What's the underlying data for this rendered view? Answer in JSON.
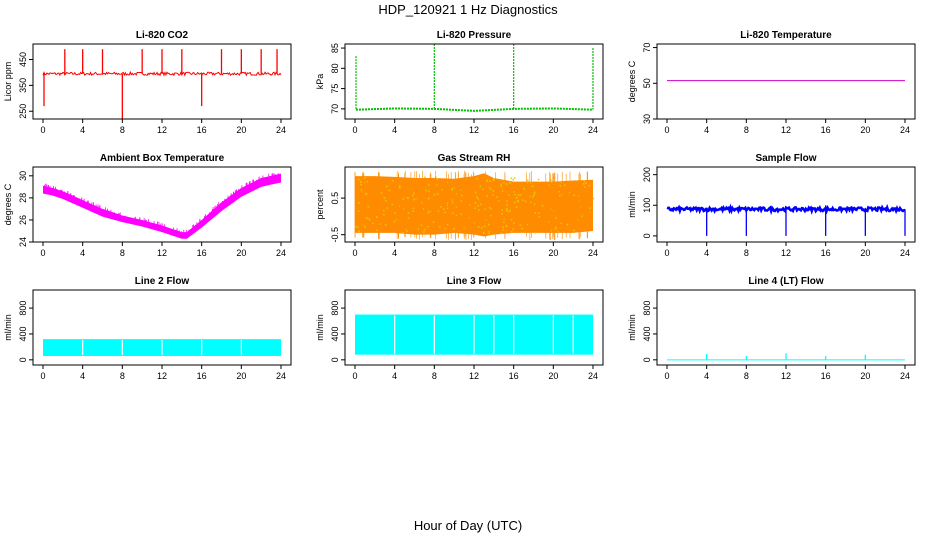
{
  "figure": {
    "title": "HDP_120921  1 Hz Diagnostics",
    "xlabel": "Hour of Day (UTC)"
  },
  "colors": {
    "co2": "#ff0000",
    "pressure": "#00c000",
    "temperature": "#cc00cc",
    "ambient": "#ff00ff",
    "rh_fill": "#ff8c00",
    "rh_dots": "#e8c800",
    "sample_flow": "#0000ff",
    "line_flow": "#00ffff"
  },
  "chart_data": [
    {
      "id": "co2",
      "type": "line",
      "title": "Li-820 CO2",
      "ylabel": "Licor ppm",
      "color": "#ff0000",
      "xlim": [
        0,
        24
      ],
      "ylim": [
        220,
        510
      ],
      "xticks": [
        0,
        4,
        8,
        12,
        16,
        20,
        24
      ],
      "yticks": [
        250,
        350,
        450
      ],
      "baseline": 395,
      "noise": 6,
      "spikes": [
        {
          "x": 2.2,
          "y": 490
        },
        {
          "x": 4.0,
          "y": 490
        },
        {
          "x": 6.0,
          "y": 490
        },
        {
          "x": 10.0,
          "y": 490
        },
        {
          "x": 12.0,
          "y": 490
        },
        {
          "x": 14.0,
          "y": 490
        },
        {
          "x": 18.0,
          "y": 490
        },
        {
          "x": 20.0,
          "y": 490
        },
        {
          "x": 22.0,
          "y": 490
        },
        {
          "x": 23.6,
          "y": 490
        },
        {
          "x": 8.0,
          "y": 220
        },
        {
          "x": 16.0,
          "y": 270
        },
        {
          "x": 0.1,
          "y": 270
        }
      ]
    },
    {
      "id": "pressure",
      "type": "line",
      "title": "Li-820 Pressure",
      "ylabel": "kPa",
      "color": "#00c000",
      "xlim": [
        0,
        24
      ],
      "ylim": [
        67.5,
        86
      ],
      "xticks": [
        0,
        4,
        8,
        12,
        16,
        20,
        24
      ],
      "yticks": [
        70,
        75,
        80,
        85
      ],
      "segments": [
        {
          "x": [
            0.1,
            4.0,
            8.0,
            12.0,
            16.0,
            20.0,
            24.0
          ],
          "y": [
            69.8,
            70.1,
            70.0,
            69.5,
            70.0,
            70.1,
            69.8
          ]
        }
      ],
      "spikes": [
        {
          "x": 0.1,
          "y": 83
        },
        {
          "x": 8.0,
          "y": 86
        },
        {
          "x": 16.0,
          "y": 86
        },
        {
          "x": 24.0,
          "y": 85
        }
      ]
    },
    {
      "id": "temperature",
      "type": "line",
      "title": "Li-820 Temperature",
      "ylabel": "degrees C",
      "color": "#cc00cc",
      "xlim": [
        0,
        24
      ],
      "ylim": [
        30,
        72
      ],
      "xticks": [
        0,
        4,
        8,
        12,
        16,
        20,
        24
      ],
      "yticks": [
        30,
        50,
        70
      ],
      "x": [
        0,
        24
      ],
      "y": [
        51.5,
        51.5
      ]
    },
    {
      "id": "ambient",
      "type": "area",
      "title": "Ambient Box Temperature",
      "ylabel": "degrees C",
      "color": "#ff00ff",
      "xlim": [
        0,
        24
      ],
      "ylim": [
        24,
        30.8
      ],
      "xticks": [
        0,
        4,
        8,
        12,
        16,
        20,
        24
      ],
      "yticks": [
        24,
        26,
        28,
        30
      ],
      "x": [
        0,
        1,
        2,
        3,
        4,
        6,
        8,
        10,
        12,
        14,
        14.5,
        16,
        18,
        20,
        22,
        23,
        24
      ],
      "upper": [
        29.1,
        28.9,
        28.6,
        28.2,
        27.8,
        27.0,
        26.4,
        26.0,
        25.5,
        24.9,
        24.9,
        26.0,
        27.6,
        28.9,
        29.8,
        30.0,
        30.2
      ],
      "lower": [
        28.4,
        28.2,
        27.9,
        27.5,
        27.1,
        26.3,
        25.8,
        25.4,
        24.9,
        24.3,
        24.3,
        25.3,
        26.8,
        28.1,
        29.0,
        29.2,
        29.4
      ]
    },
    {
      "id": "rh",
      "type": "area",
      "title": "Gas Stream RH",
      "ylabel": "percent",
      "color": "#ff8c00",
      "xlim": [
        0,
        24
      ],
      "ylim": [
        -0.7,
        1.35
      ],
      "xticks": [
        0,
        4,
        8,
        12,
        16,
        20,
        24
      ],
      "yticks": [
        -0.5,
        0.5
      ],
      "x": [
        0,
        2,
        4,
        6,
        8,
        10,
        12,
        13,
        14,
        16,
        18,
        20,
        22,
        24
      ],
      "upper": [
        1.1,
        1.1,
        1.08,
        1.05,
        1.05,
        1.03,
        1.1,
        1.18,
        1.05,
        0.95,
        0.95,
        0.95,
        0.98,
        1.0
      ],
      "lower": [
        -0.45,
        -0.45,
        -0.45,
        -0.5,
        -0.5,
        -0.45,
        -0.5,
        -0.55,
        -0.5,
        -0.45,
        -0.45,
        -0.45,
        -0.45,
        -0.4
      ]
    },
    {
      "id": "sample_flow",
      "type": "line",
      "title": "Sample Flow",
      "ylabel": "ml/min",
      "color": "#0000ff",
      "xlim": [
        0,
        24
      ],
      "ylim": [
        -20,
        225
      ],
      "xticks": [
        0,
        4,
        8,
        12,
        16,
        20,
        24
      ],
      "yticks": [
        0,
        100,
        200
      ],
      "baseline": 87,
      "noise": 6,
      "spikes": [
        {
          "x": 4.0,
          "y": 0
        },
        {
          "x": 8.0,
          "y": 0
        },
        {
          "x": 12.0,
          "y": 0
        },
        {
          "x": 16.0,
          "y": 0
        },
        {
          "x": 20.0,
          "y": 0
        },
        {
          "x": 24.0,
          "y": 0
        },
        {
          "x": 16.0,
          "y": 100
        }
      ]
    },
    {
      "id": "line2",
      "type": "area",
      "title": "Line 2 Flow",
      "ylabel": "ml/min",
      "color": "#00ffff",
      "xlim": [
        0,
        24
      ],
      "ylim": [
        -80,
        1080
      ],
      "xticks": [
        0,
        4,
        8,
        12,
        16,
        20,
        24
      ],
      "yticks": [
        0,
        400,
        800
      ],
      "x": [
        0,
        24
      ],
      "upper": [
        320,
        320
      ],
      "lower": [
        60,
        60
      ],
      "gaps": [
        4,
        8,
        12,
        16,
        20
      ]
    },
    {
      "id": "line3",
      "type": "area",
      "title": "Line 3 Flow",
      "ylabel": "ml/min",
      "color": "#00ffff",
      "xlim": [
        0,
        24
      ],
      "ylim": [
        -80,
        1080
      ],
      "xticks": [
        0,
        4,
        8,
        12,
        16,
        20,
        24
      ],
      "yticks": [
        0,
        400,
        800
      ],
      "x": [
        0,
        24
      ],
      "upper": [
        700,
        700
      ],
      "lower": [
        80,
        80
      ],
      "gaps": [
        4,
        8,
        12,
        14,
        16,
        20,
        22
      ]
    },
    {
      "id": "line4",
      "type": "line",
      "title": "Line 4 (LT) Flow",
      "ylabel": "ml/min",
      "color": "#00ffff",
      "xlim": [
        0,
        24
      ],
      "ylim": [
        -80,
        1080
      ],
      "xticks": [
        0,
        4,
        8,
        12,
        16,
        20,
        24
      ],
      "yticks": [
        0,
        400,
        800
      ],
      "baseline": 0,
      "noise": 0,
      "spikes": [
        {
          "x": 4.0,
          "y": 90
        },
        {
          "x": 8.0,
          "y": 60
        },
        {
          "x": 12.0,
          "y": 100
        },
        {
          "x": 16.0,
          "y": 60
        },
        {
          "x": 20.0,
          "y": 80
        }
      ]
    }
  ]
}
